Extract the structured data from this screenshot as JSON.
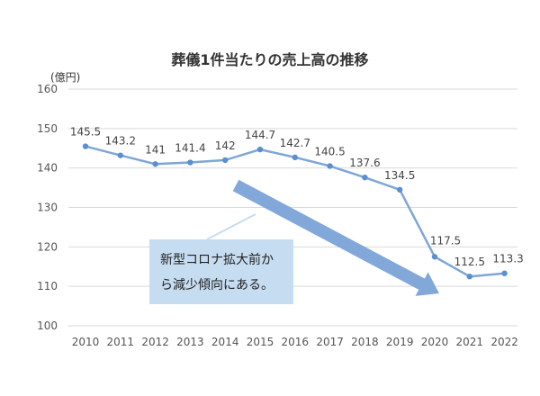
{
  "chart_data": {
    "type": "line",
    "title": "葬儀1件当たりの売上高の推移",
    "unit_label": "(億円)",
    "x": [
      "2010",
      "2011",
      "2012",
      "2013",
      "2014",
      "2015",
      "2016",
      "2017",
      "2018",
      "2019",
      "2020",
      "2021",
      "2022"
    ],
    "values": [
      145.5,
      143.2,
      141,
      141.4,
      142,
      144.7,
      142.7,
      140.5,
      137.6,
      134.5,
      117.5,
      112.5,
      113.3
    ],
    "data_labels": [
      "145.5",
      "143.2",
      "141",
      "141.4",
      "142",
      "144.7",
      "142.7",
      "140.5",
      "137.6",
      "134.5",
      "117.5",
      "112.5",
      "113.3"
    ],
    "y_ticks": [
      100,
      110,
      120,
      130,
      140,
      150,
      160
    ],
    "ylim": [
      100,
      160
    ],
    "grid": true,
    "legend": "none",
    "annotation": {
      "lines": [
        "新型コロナ拡大前か",
        "ら減少傾向にある。"
      ]
    },
    "colors": {
      "line": "#7ea6d6",
      "marker": "#5b8fd0",
      "arrow": "#7ba3d8",
      "note_fill": "#c6dcf1",
      "grid": "#d9d9d9"
    }
  }
}
